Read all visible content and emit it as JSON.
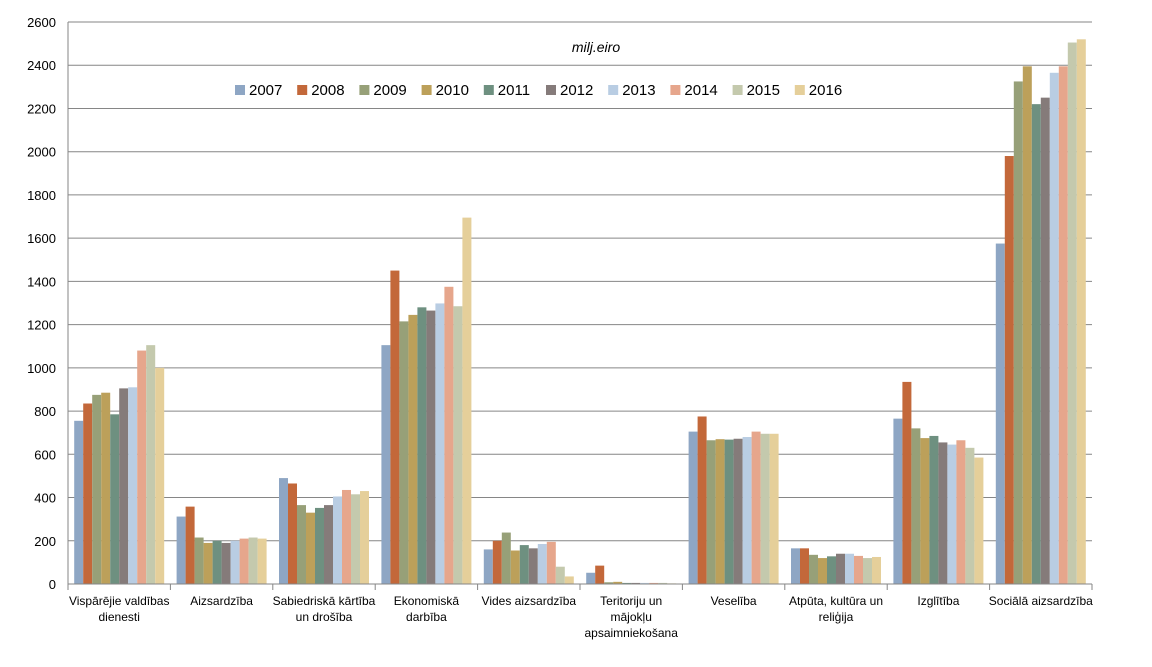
{
  "chart_data": {
    "type": "bar",
    "unit_label": "milj.eiro",
    "ylim": [
      0,
      2600
    ],
    "yticks": [
      0,
      200,
      400,
      600,
      800,
      1000,
      1200,
      1400,
      1600,
      1800,
      2000,
      2200,
      2400,
      2600
    ],
    "grid": true,
    "legend_position": "top",
    "categories": [
      [
        "Vispārējie valdības",
        "dienesti"
      ],
      [
        "Aizsardzība"
      ],
      [
        "Sabiedriskā kārtība",
        "un drošība"
      ],
      [
        "Ekonomiskā",
        "darbība"
      ],
      [
        "Vides aizsardzība"
      ],
      [
        "Teritoriju un",
        "mājokļu",
        "apsaimniekošana"
      ],
      [
        "Veselība"
      ],
      [
        "Atpūta, kultūra un",
        "reliģija"
      ],
      [
        "Izglītība"
      ],
      [
        "Sociālā aizsardzība"
      ]
    ],
    "series": [
      {
        "name": "2007",
        "color": "#8ea6c4",
        "values": [
          755,
          312,
          490,
          1105,
          160,
          52,
          705,
          165,
          765,
          1575
        ]
      },
      {
        "name": "2008",
        "color": "#c3683a",
        "values": [
          835,
          358,
          465,
          1450,
          200,
          85,
          775,
          165,
          935,
          1980
        ]
      },
      {
        "name": "2009",
        "color": "#97a078",
        "values": [
          875,
          215,
          365,
          1215,
          238,
          8,
          665,
          135,
          720,
          2325
        ]
      },
      {
        "name": "2010",
        "color": "#bca05a",
        "values": [
          885,
          190,
          330,
          1245,
          155,
          10,
          670,
          120,
          675,
          2395
        ]
      },
      {
        "name": "2011",
        "color": "#6e9080",
        "values": [
          785,
          200,
          352,
          1280,
          180,
          5,
          668,
          128,
          685,
          2220
        ]
      },
      {
        "name": "2012",
        "color": "#857b7a",
        "values": [
          905,
          190,
          365,
          1265,
          165,
          5,
          672,
          140,
          655,
          2250
        ]
      },
      {
        "name": "2013",
        "color": "#b9cde3",
        "values": [
          910,
          200,
          405,
          1298,
          185,
          5,
          680,
          140,
          645,
          2365
        ]
      },
      {
        "name": "2014",
        "color": "#e6a68c",
        "values": [
          1080,
          210,
          435,
          1375,
          195,
          5,
          705,
          130,
          665,
          2395
        ]
      },
      {
        "name": "2015",
        "color": "#c4c9ad",
        "values": [
          1105,
          215,
          415,
          1285,
          80,
          5,
          695,
          120,
          630,
          2505
        ]
      },
      {
        "name": "2016",
        "color": "#e5cf9a",
        "values": [
          1000,
          210,
          430,
          1695,
          35,
          3,
          695,
          125,
          585,
          2520
        ]
      }
    ]
  }
}
